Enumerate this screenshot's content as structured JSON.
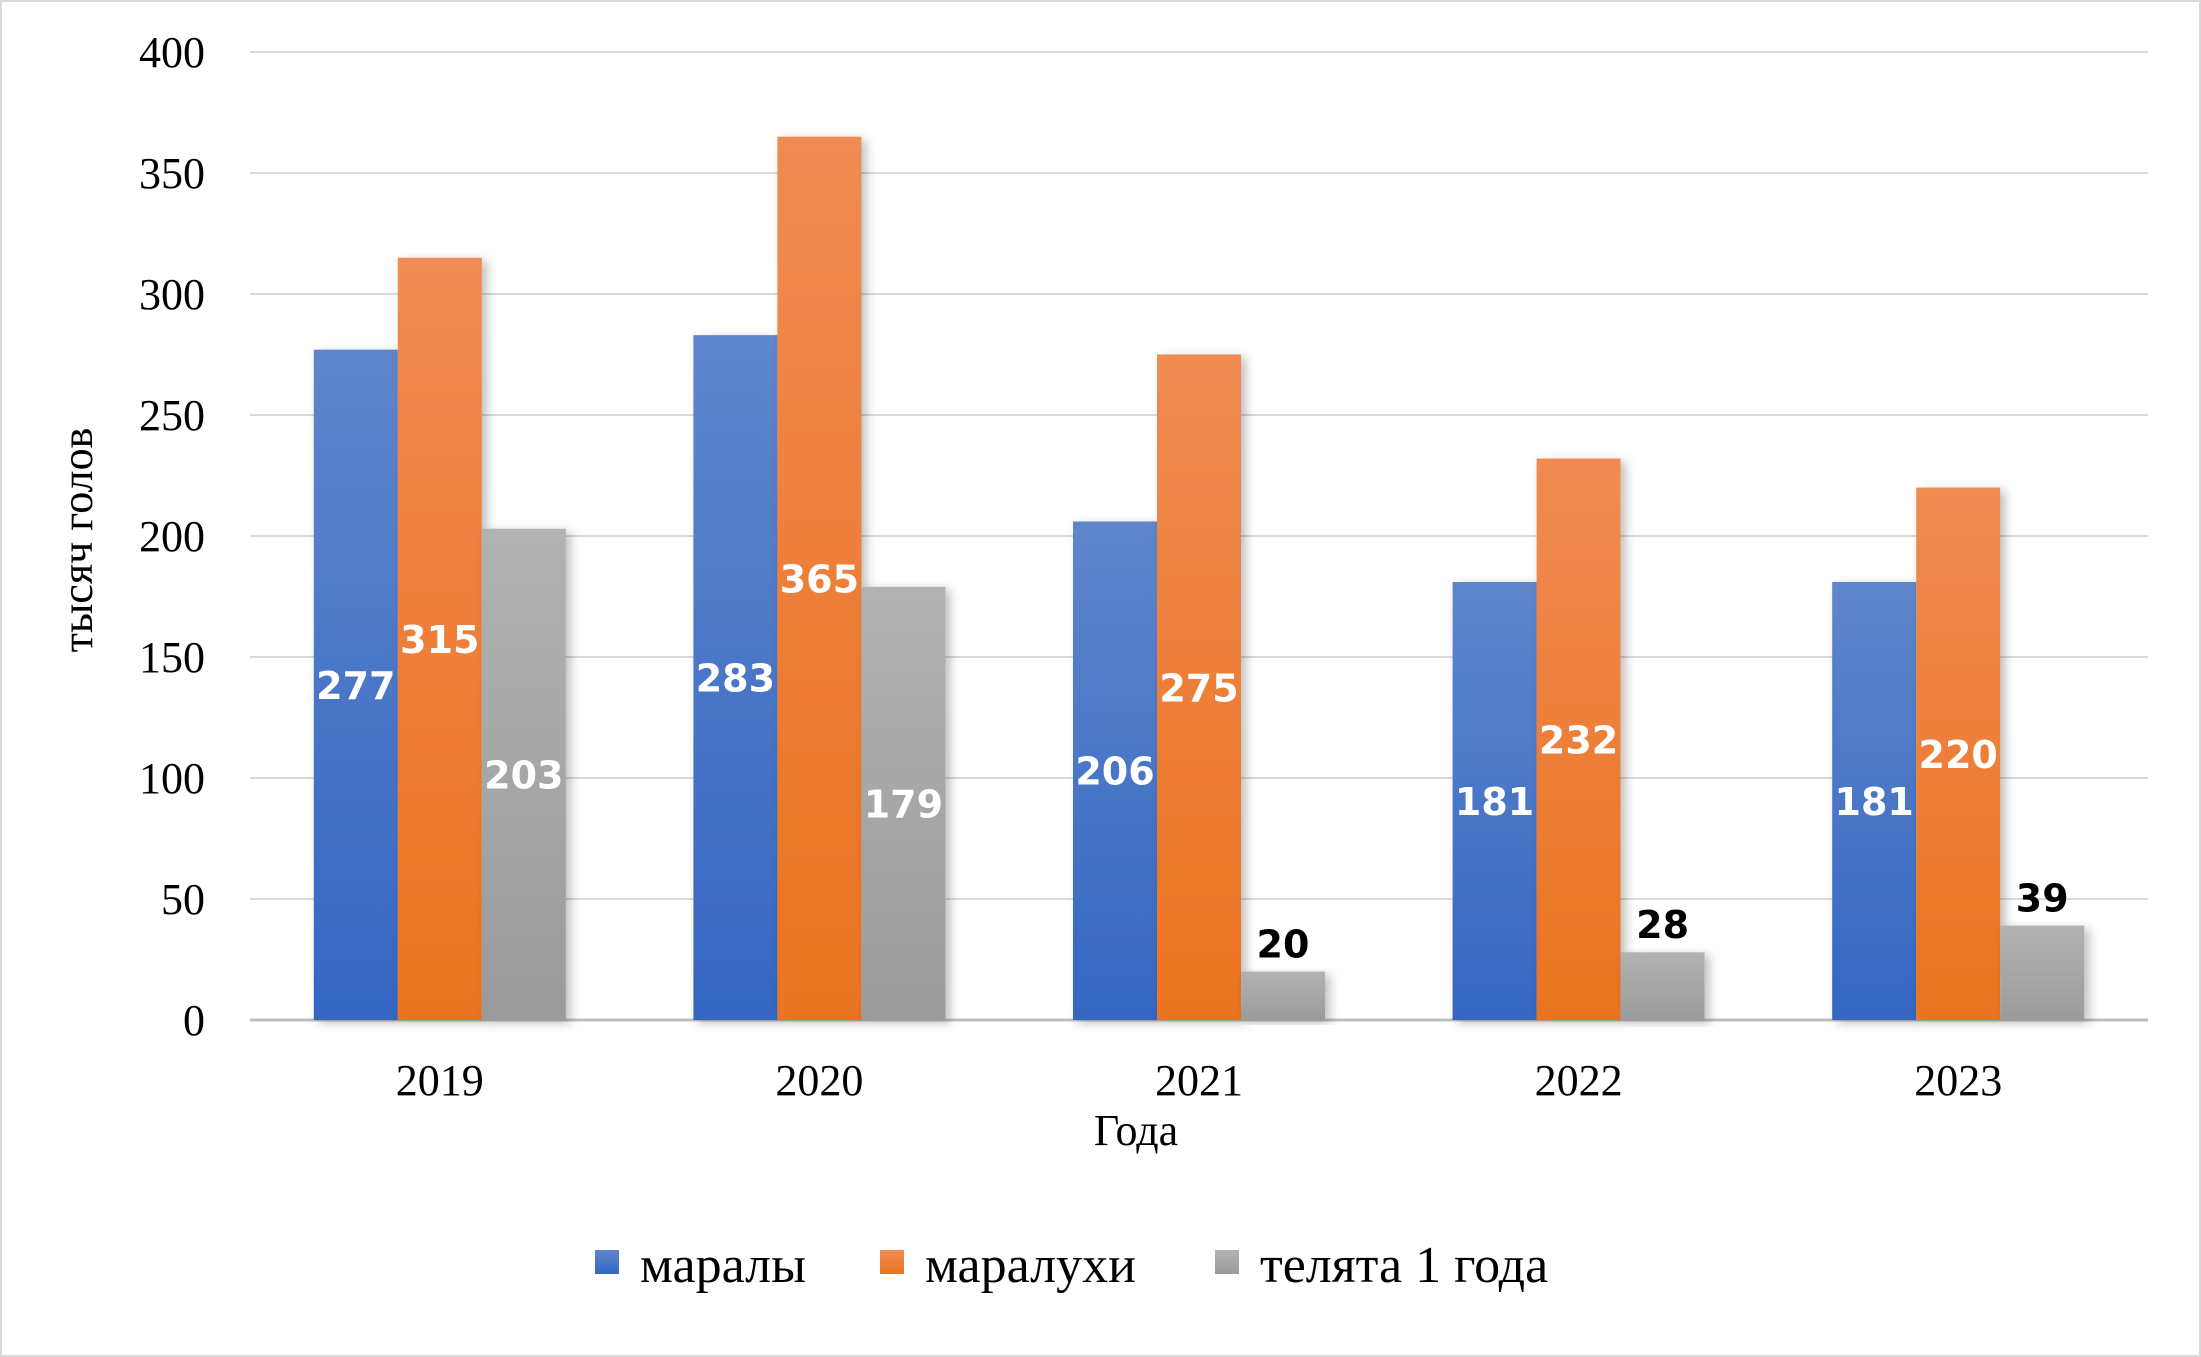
{
  "chart_data": {
    "type": "bar",
    "title": "",
    "xlabel": "Года",
    "ylabel": "тысяч голов",
    "categories": [
      "2019",
      "2020",
      "2021",
      "2022",
      "2023"
    ],
    "series": [
      {
        "name": "маралы",
        "values": [
          277,
          283,
          206,
          181,
          181
        ],
        "color": "#4472C4"
      },
      {
        "name": "маралухи",
        "values": [
          315,
          365,
          275,
          232,
          220
        ],
        "color": "#ED7D31"
      },
      {
        "name": "телята 1 года",
        "values": [
          203,
          179,
          20,
          28,
          39
        ],
        "color": "#A5A5A5"
      }
    ],
    "ylim": [
      0,
      400
    ],
    "yticks": [
      "0",
      "50",
      "100",
      "150",
      "200",
      "250",
      "300",
      "350",
      "400"
    ],
    "grid": true,
    "legend": "bottom"
  }
}
